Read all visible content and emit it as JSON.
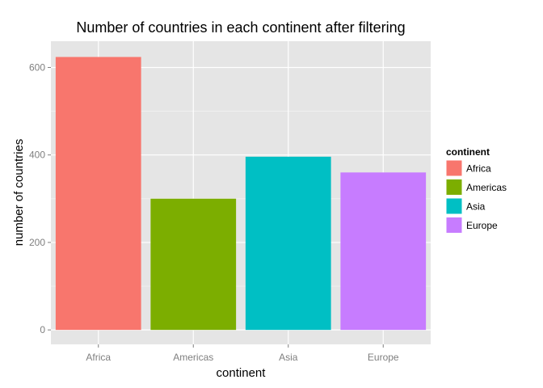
{
  "chart_data": {
    "type": "bar",
    "title": "Number of countries in each continent after filtering",
    "xlabel": "continent",
    "ylabel": "number of countries",
    "categories": [
      "Africa",
      "Americas",
      "Asia",
      "Europe"
    ],
    "values": [
      624,
      300,
      396,
      360
    ],
    "colors": [
      "#F8766D",
      "#7CAE00",
      "#00BFC4",
      "#C77CFF"
    ],
    "ylim": [
      -33,
      660
    ],
    "yticks": [
      0,
      200,
      400,
      600
    ],
    "yminor": [
      100,
      300,
      500
    ],
    "grid": true,
    "panel_background": "#E5E5E5",
    "grid_color": "#FFFFFF",
    "legend": {
      "title": "continent",
      "position": "right",
      "entries": [
        "Africa",
        "Americas",
        "Asia",
        "Europe"
      ]
    }
  }
}
